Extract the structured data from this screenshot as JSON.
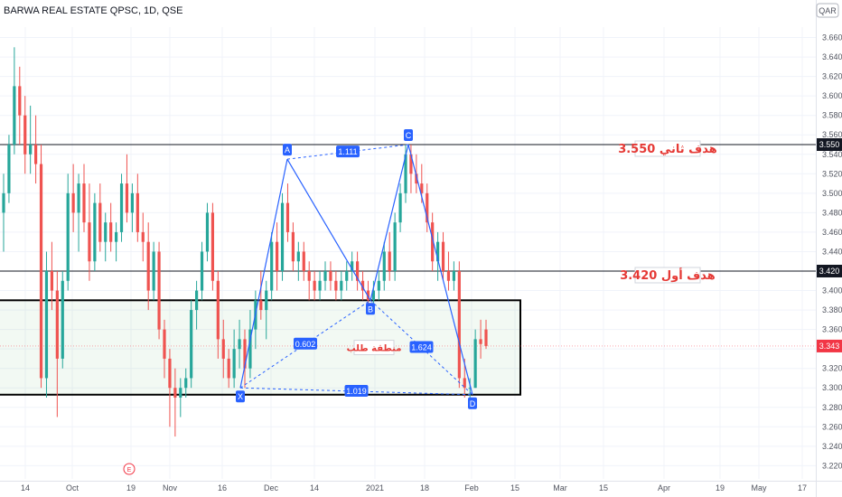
{
  "header": {
    "title": "BARWA REAL ESTATE QPSC, 1D, QSE",
    "currency": "QAR"
  },
  "chart_data": {
    "type": "candlestick",
    "title": "BARWA REAL ESTATE QPSC, 1D, QSE",
    "ylim": [
      3.21,
      3.675
    ],
    "y_ticks": [
      3.22,
      3.24,
      3.26,
      3.28,
      3.3,
      3.32,
      3.34,
      3.36,
      3.38,
      3.4,
      3.42,
      3.44,
      3.46,
      3.48,
      3.5,
      3.52,
      3.54,
      3.56,
      3.58,
      3.6,
      3.62,
      3.64,
      3.66
    ],
    "x_labels": [
      "14",
      "Oct",
      "19",
      "Nov",
      "16",
      "Dec",
      "14",
      "2021",
      "18",
      "Feb",
      "15",
      "Mar",
      "15",
      "Apr",
      "19",
      "May",
      "17"
    ],
    "price_labels": [
      {
        "text": "3.550",
        "value": 3.55,
        "color": "#131722"
      },
      {
        "text": "3.420",
        "value": 3.42,
        "color": "#131722"
      },
      {
        "text": "3.343",
        "value": 3.343,
        "color": "#f23645"
      }
    ],
    "hlines": [
      3.55,
      3.42
    ],
    "last_price": 3.343,
    "demand_zone": {
      "top": 3.39,
      "bottom": 3.293,
      "label": "منطقة طلب"
    },
    "targets": [
      {
        "text": "هدف ثاني 3.550",
        "value": 3.55
      },
      {
        "text": "هدف أول 3.420",
        "value": 3.42
      }
    ],
    "pattern_points": [
      {
        "name": "X",
        "value": 3.3
      },
      {
        "name": "A",
        "value": 3.535
      },
      {
        "name": "B",
        "value": 3.39
      },
      {
        "name": "C",
        "value": 3.55
      },
      {
        "name": "D",
        "value": 3.293
      }
    ],
    "ratios": [
      {
        "text": "0.602"
      },
      {
        "text": "1.111"
      },
      {
        "text": "1.624"
      },
      {
        "text": "1.019"
      }
    ],
    "candles": [
      {
        "o": 3.48,
        "h": 3.52,
        "l": 3.44,
        "c": 3.5
      },
      {
        "o": 3.5,
        "h": 3.56,
        "l": 3.49,
        "c": 3.55
      },
      {
        "o": 3.55,
        "h": 3.65,
        "l": 3.54,
        "c": 3.61
      },
      {
        "o": 3.61,
        "h": 3.63,
        "l": 3.55,
        "c": 3.58
      },
      {
        "o": 3.58,
        "h": 3.6,
        "l": 3.52,
        "c": 3.54
      },
      {
        "o": 3.54,
        "h": 3.59,
        "l": 3.52,
        "c": 3.55
      },
      {
        "o": 3.55,
        "h": 3.58,
        "l": 3.51,
        "c": 3.53
      },
      {
        "o": 3.53,
        "h": 3.55,
        "l": 3.3,
        "c": 3.31
      },
      {
        "o": 3.31,
        "h": 3.44,
        "l": 3.29,
        "c": 3.42
      },
      {
        "o": 3.42,
        "h": 3.45,
        "l": 3.38,
        "c": 3.4
      },
      {
        "o": 3.4,
        "h": 3.42,
        "l": 3.27,
        "c": 3.33
      },
      {
        "o": 3.33,
        "h": 3.42,
        "l": 3.32,
        "c": 3.41
      },
      {
        "o": 3.41,
        "h": 3.52,
        "l": 3.4,
        "c": 3.5
      },
      {
        "o": 3.5,
        "h": 3.53,
        "l": 3.46,
        "c": 3.48
      },
      {
        "o": 3.48,
        "h": 3.52,
        "l": 3.44,
        "c": 3.51
      },
      {
        "o": 3.51,
        "h": 3.53,
        "l": 3.46,
        "c": 3.47
      },
      {
        "o": 3.47,
        "h": 3.51,
        "l": 3.41,
        "c": 3.43
      },
      {
        "o": 3.43,
        "h": 3.5,
        "l": 3.42,
        "c": 3.49
      },
      {
        "o": 3.49,
        "h": 3.51,
        "l": 3.44,
        "c": 3.45
      },
      {
        "o": 3.45,
        "h": 3.48,
        "l": 3.43,
        "c": 3.47
      },
      {
        "o": 3.47,
        "h": 3.49,
        "l": 3.44,
        "c": 3.45
      },
      {
        "o": 3.45,
        "h": 3.47,
        "l": 3.43,
        "c": 3.46
      },
      {
        "o": 3.46,
        "h": 3.52,
        "l": 3.45,
        "c": 3.51
      },
      {
        "o": 3.51,
        "h": 3.54,
        "l": 3.47,
        "c": 3.48
      },
      {
        "o": 3.48,
        "h": 3.51,
        "l": 3.46,
        "c": 3.5
      },
      {
        "o": 3.5,
        "h": 3.52,
        "l": 3.45,
        "c": 3.46
      },
      {
        "o": 3.46,
        "h": 3.48,
        "l": 3.43,
        "c": 3.45
      },
      {
        "o": 3.45,
        "h": 3.47,
        "l": 3.38,
        "c": 3.4
      },
      {
        "o": 3.4,
        "h": 3.45,
        "l": 3.39,
        "c": 3.44
      },
      {
        "o": 3.44,
        "h": 3.45,
        "l": 3.35,
        "c": 3.36
      },
      {
        "o": 3.36,
        "h": 3.37,
        "l": 3.31,
        "c": 3.33
      },
      {
        "o": 3.33,
        "h": 3.34,
        "l": 3.26,
        "c": 3.3
      },
      {
        "o": 3.3,
        "h": 3.32,
        "l": 3.25,
        "c": 3.29
      },
      {
        "o": 3.29,
        "h": 3.31,
        "l": 3.27,
        "c": 3.3
      },
      {
        "o": 3.3,
        "h": 3.32,
        "l": 3.29,
        "c": 3.31
      },
      {
        "o": 3.31,
        "h": 3.39,
        "l": 3.3,
        "c": 3.38
      },
      {
        "o": 3.38,
        "h": 3.41,
        "l": 3.36,
        "c": 3.4
      },
      {
        "o": 3.4,
        "h": 3.45,
        "l": 3.39,
        "c": 3.44
      },
      {
        "o": 3.44,
        "h": 3.49,
        "l": 3.43,
        "c": 3.48
      },
      {
        "o": 3.48,
        "h": 3.49,
        "l": 3.4,
        "c": 3.41
      },
      {
        "o": 3.41,
        "h": 3.42,
        "l": 3.33,
        "c": 3.35
      },
      {
        "o": 3.35,
        "h": 3.37,
        "l": 3.31,
        "c": 3.33
      },
      {
        "o": 3.33,
        "h": 3.34,
        "l": 3.3,
        "c": 3.31
      },
      {
        "o": 3.31,
        "h": 3.36,
        "l": 3.3,
        "c": 3.34
      },
      {
        "o": 3.34,
        "h": 3.37,
        "l": 3.32,
        "c": 3.35
      },
      {
        "o": 3.35,
        "h": 3.36,
        "l": 3.3,
        "c": 3.32
      },
      {
        "o": 3.32,
        "h": 3.38,
        "l": 3.31,
        "c": 3.36
      },
      {
        "o": 3.36,
        "h": 3.4,
        "l": 3.34,
        "c": 3.39
      },
      {
        "o": 3.39,
        "h": 3.42,
        "l": 3.37,
        "c": 3.38
      },
      {
        "o": 3.38,
        "h": 3.41,
        "l": 3.35,
        "c": 3.4
      },
      {
        "o": 3.4,
        "h": 3.46,
        "l": 3.39,
        "c": 3.45
      },
      {
        "o": 3.45,
        "h": 3.47,
        "l": 3.4,
        "c": 3.42
      },
      {
        "o": 3.42,
        "h": 3.5,
        "l": 3.41,
        "c": 3.49
      },
      {
        "o": 3.49,
        "h": 3.51,
        "l": 3.45,
        "c": 3.46
      },
      {
        "o": 3.46,
        "h": 3.47,
        "l": 3.42,
        "c": 3.43
      },
      {
        "o": 3.43,
        "h": 3.45,
        "l": 3.41,
        "c": 3.44
      },
      {
        "o": 3.44,
        "h": 3.45,
        "l": 3.41,
        "c": 3.42
      },
      {
        "o": 3.42,
        "h": 3.43,
        "l": 3.39,
        "c": 3.41
      },
      {
        "o": 3.41,
        "h": 3.42,
        "l": 3.39,
        "c": 3.4
      },
      {
        "o": 3.4,
        "h": 3.42,
        "l": 3.39,
        "c": 3.41
      },
      {
        "o": 3.41,
        "h": 3.43,
        "l": 3.4,
        "c": 3.42
      },
      {
        "o": 3.42,
        "h": 3.43,
        "l": 3.4,
        "c": 3.41
      },
      {
        "o": 3.41,
        "h": 3.42,
        "l": 3.39,
        "c": 3.4
      },
      {
        "o": 3.4,
        "h": 3.42,
        "l": 3.39,
        "c": 3.41
      },
      {
        "o": 3.41,
        "h": 3.43,
        "l": 3.4,
        "c": 3.42
      },
      {
        "o": 3.42,
        "h": 3.44,
        "l": 3.41,
        "c": 3.43
      },
      {
        "o": 3.43,
        "h": 3.44,
        "l": 3.4,
        "c": 3.41
      },
      {
        "o": 3.41,
        "h": 3.42,
        "l": 3.39,
        "c": 3.4
      },
      {
        "o": 3.4,
        "h": 3.41,
        "l": 3.38,
        "c": 3.39
      },
      {
        "o": 3.39,
        "h": 3.41,
        "l": 3.38,
        "c": 3.4
      },
      {
        "o": 3.4,
        "h": 3.42,
        "l": 3.39,
        "c": 3.41
      },
      {
        "o": 3.41,
        "h": 3.45,
        "l": 3.4,
        "c": 3.44
      },
      {
        "o": 3.44,
        "h": 3.46,
        "l": 3.41,
        "c": 3.42
      },
      {
        "o": 3.42,
        "h": 3.48,
        "l": 3.41,
        "c": 3.47
      },
      {
        "o": 3.47,
        "h": 3.51,
        "l": 3.46,
        "c": 3.5
      },
      {
        "o": 3.5,
        "h": 3.55,
        "l": 3.49,
        "c": 3.54
      },
      {
        "o": 3.54,
        "h": 3.55,
        "l": 3.5,
        "c": 3.52
      },
      {
        "o": 3.52,
        "h": 3.54,
        "l": 3.5,
        "c": 3.51
      },
      {
        "o": 3.51,
        "h": 3.53,
        "l": 3.49,
        "c": 3.5
      },
      {
        "o": 3.5,
        "h": 3.51,
        "l": 3.46,
        "c": 3.47
      },
      {
        "o": 3.47,
        "h": 3.48,
        "l": 3.42,
        "c": 3.43
      },
      {
        "o": 3.43,
        "h": 3.46,
        "l": 3.41,
        "c": 3.45
      },
      {
        "o": 3.45,
        "h": 3.46,
        "l": 3.41,
        "c": 3.42
      },
      {
        "o": 3.42,
        "h": 3.44,
        "l": 3.4,
        "c": 3.41
      },
      {
        "o": 3.41,
        "h": 3.43,
        "l": 3.4,
        "c": 3.42
      },
      {
        "o": 3.42,
        "h": 3.43,
        "l": 3.3,
        "c": 3.31
      },
      {
        "o": 3.31,
        "h": 3.33,
        "l": 3.29,
        "c": 3.3
      },
      {
        "o": 3.3,
        "h": 3.31,
        "l": 3.29,
        "c": 3.3
      },
      {
        "o": 3.3,
        "h": 3.36,
        "l": 3.3,
        "c": 3.35
      },
      {
        "o": 3.35,
        "h": 3.37,
        "l": 3.33,
        "c": 3.345
      },
      {
        "o": 3.36,
        "h": 3.37,
        "l": 3.34,
        "c": 3.343
      }
    ]
  }
}
